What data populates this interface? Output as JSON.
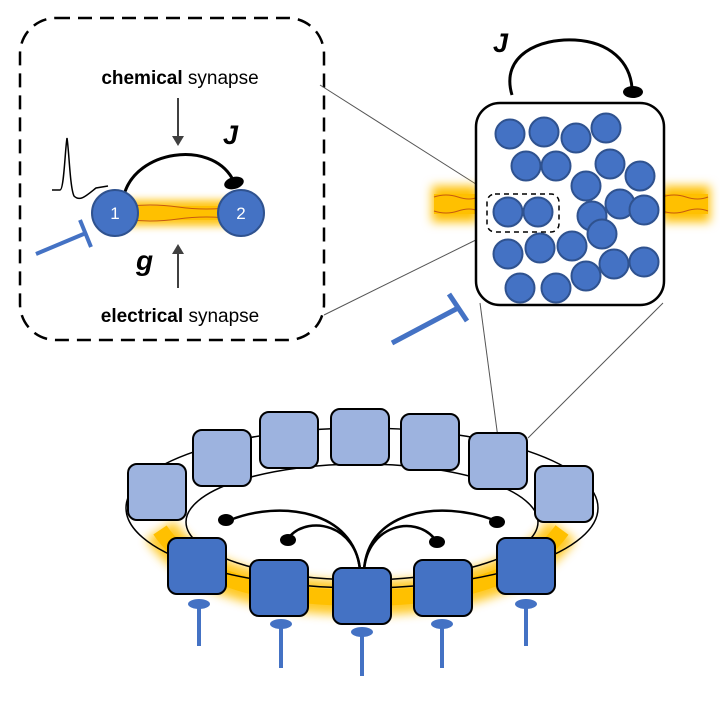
{
  "inset": {
    "chemical_bold": "chemical",
    "chemical_rest": " synapse",
    "electrical_bold": "electrical",
    "electrical_rest": " synapse",
    "J_label": "J",
    "g_label": "g",
    "neuron_1": "1",
    "neuron_2": "2"
  },
  "population": {
    "J_label": "J"
  },
  "colors": {
    "neuron": "#4472c4",
    "neuron_stroke": "#2f528f",
    "gap_junction": "#ffc000",
    "glow": "#ffd966",
    "ring_module_light": "#9db3df",
    "input_arrow": "#4472c4"
  }
}
